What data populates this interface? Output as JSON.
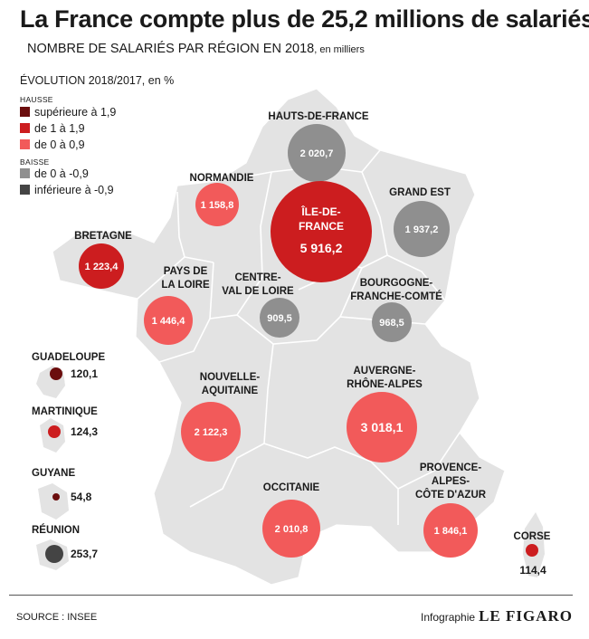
{
  "title": "La France compte plus de 25,2 millions de salariés",
  "subtitle": "NOMBRE DE SALARIÉS PAR RÉGION EN 2018",
  "subtitle_unit": ", en milliers",
  "legend": {
    "title": "ÉVOLUTION 2018/2017, en %",
    "hausse_label": "HAUSSE",
    "baisse_label": "BAISSE",
    "items": [
      {
        "label": "supérieure à 1,9",
        "color": "#6b0d0d"
      },
      {
        "label": "de 1 à 1,9",
        "color": "#cc1d1f"
      },
      {
        "label": "de 0 à 0,9",
        "color": "#f25a5a"
      },
      {
        "label": "de 0 à -0,9",
        "color": "#8f8f8f"
      },
      {
        "label": "inférieure à -0,9",
        "color": "#444444"
      }
    ]
  },
  "regions": [
    {
      "name_lines": [
        "HAUTS-DE-FRANCE"
      ],
      "value": "2 020,7",
      "class": "de 0 à -0,9"
    },
    {
      "name_lines": [
        "NORMANDIE"
      ],
      "value": "1 158,8",
      "class": "de 0 à 0,9"
    },
    {
      "name_lines": [
        "ÎLE-DE-",
        "FRANCE"
      ],
      "value": "5 916,2",
      "class": "de 1 à 1,9"
    },
    {
      "name_lines": [
        "GRAND EST"
      ],
      "value": "1 937,2",
      "class": "de 0 à -0,9"
    },
    {
      "name_lines": [
        "BRETAGNE"
      ],
      "value": "1 223,4",
      "class": "de 1 à 1,9"
    },
    {
      "name_lines": [
        "PAYS DE",
        "LA LOIRE"
      ],
      "value": "1 446,4",
      "class": "de 0 à 0,9"
    },
    {
      "name_lines": [
        "CENTRE-",
        "VAL DE LOIRE"
      ],
      "value": "909,5",
      "class": "de 0 à -0,9"
    },
    {
      "name_lines": [
        "BOURGOGNE-",
        "FRANCHE-COMTÉ"
      ],
      "value": "968,5",
      "class": "de 0 à -0,9"
    },
    {
      "name_lines": [
        "NOUVELLE-",
        "AQUITAINE"
      ],
      "value": "2 122,3",
      "class": "de 0 à 0,9"
    },
    {
      "name_lines": [
        "AUVERGNE-",
        "RHÔNE-ALPES"
      ],
      "value": "3 018,1",
      "class": "de 0 à 0,9"
    },
    {
      "name_lines": [
        "OCCITANIE"
      ],
      "value": "2 010,8",
      "class": "de 0 à 0,9"
    },
    {
      "name_lines": [
        "PROVENCE-",
        "ALPES-",
        "CÔTE D'AZUR"
      ],
      "value": "1 846,1",
      "class": "de 0 à 0,9"
    },
    {
      "name_lines": [
        "CORSE"
      ],
      "value": "114,4",
      "class": "de 1 à 1,9"
    }
  ],
  "overseas": [
    {
      "name": "GUADELOUPE",
      "value": "120,1",
      "class": "supérieure à 1,9"
    },
    {
      "name": "MARTINIQUE",
      "value": "124,3",
      "class": "de 1 à 1,9"
    },
    {
      "name": "GUYANE",
      "value": "54,8",
      "class": "supérieure à 1,9"
    },
    {
      "name": "RÉUNION",
      "value": "253,7",
      "class": "inférieure à -0,9"
    }
  ],
  "source": "SOURCE : INSEE",
  "credit_prefix": "Infographie",
  "credit_logo": "LE FIGARO"
}
